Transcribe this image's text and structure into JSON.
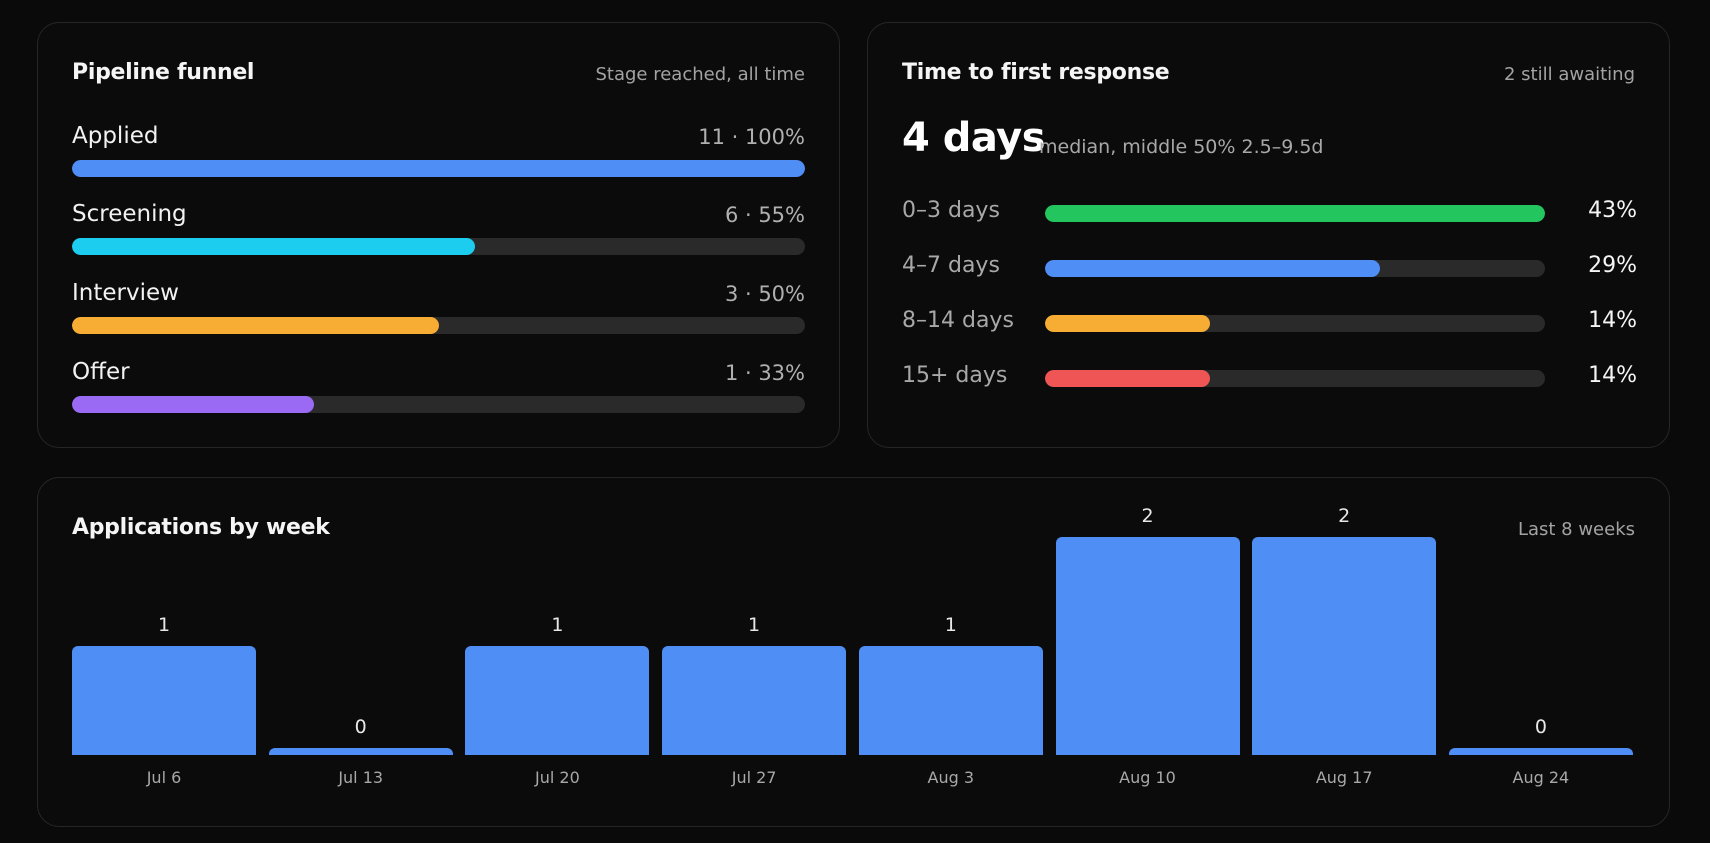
{
  "funnel": {
    "title": "Pipeline funnel",
    "subtitle": "Stage reached, all time",
    "stages": [
      {
        "label": "Applied",
        "value": "11 · 100%",
        "fraction": 1.0,
        "color": "#4f8ef5"
      },
      {
        "label": "Screening",
        "value": "6 · 55%",
        "fraction": 0.55,
        "color": "#1ccdf0"
      },
      {
        "label": "Interview",
        "value": "3 · 50%",
        "fraction": 0.5,
        "color": "#f7ad33"
      },
      {
        "label": "Offer",
        "value": "1 · 33%",
        "fraction": 0.33,
        "color": "#9b6af5"
      }
    ]
  },
  "response": {
    "title": "Time to first response",
    "subtitle": "2 still awaiting",
    "median_value": "4 days",
    "median_caption": "median, middle 50% 2.5–9.5d",
    "buckets": [
      {
        "label": "0–3 days",
        "pct": "43%",
        "fraction": 1.0,
        "color": "#22c55e"
      },
      {
        "label": "4–7 days",
        "pct": "29%",
        "fraction": 0.67,
        "color": "#4f8ef5"
      },
      {
        "label": "8–14 days",
        "pct": "14%",
        "fraction": 0.33,
        "color": "#f7ad33"
      },
      {
        "label": "15+ days",
        "pct": "14%",
        "fraction": 0.33,
        "color": "#ef5555"
      }
    ]
  },
  "weekly": {
    "title": "Applications by week",
    "subtitle": "Last 8 weeks"
  },
  "chart_data": {
    "type": "bar",
    "categories": [
      "Jul 6",
      "Jul 13",
      "Jul 20",
      "Jul 27",
      "Aug 3",
      "Aug 10",
      "Aug 17",
      "Aug 24"
    ],
    "values": [
      1,
      0,
      1,
      1,
      1,
      2,
      2,
      0
    ],
    "title": "Applications by week",
    "xlabel": "",
    "ylabel": "",
    "ylim": [
      0,
      2
    ],
    "color": "#4f8ef5"
  }
}
